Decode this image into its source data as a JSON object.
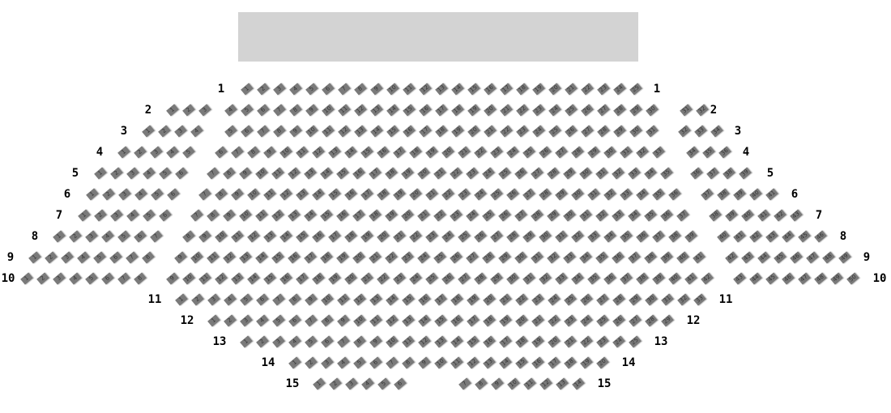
{
  "colors": {
    "stage": "#d3d3d3",
    "seat": "#7a7a7a",
    "label": "#000000"
  },
  "stage": {
    "label": ""
  },
  "rows": [
    {
      "label": "1",
      "sections": [
        25
      ]
    },
    {
      "label": "2",
      "sections": [
        3,
        27,
        2
      ]
    },
    {
      "label": "3",
      "sections": [
        4,
        27,
        3
      ]
    },
    {
      "label": "4",
      "sections": [
        5,
        28,
        3
      ]
    },
    {
      "label": "5",
      "sections": [
        6,
        29,
        4
      ]
    },
    {
      "label": "6",
      "sections": [
        6,
        30,
        5
      ]
    },
    {
      "label": "7",
      "sections": [
        6,
        31,
        6
      ]
    },
    {
      "label": "8",
      "sections": [
        7,
        32,
        7
      ]
    },
    {
      "label": "9",
      "sections": [
        8,
        33,
        8
      ]
    },
    {
      "label": "10",
      "sections": [
        8,
        34,
        8
      ]
    },
    {
      "label": "11",
      "sections": [
        33
      ]
    },
    {
      "label": "12",
      "sections": [
        29
      ]
    },
    {
      "label": "13",
      "sections": [
        25
      ]
    },
    {
      "label": "14",
      "sections": [
        20
      ]
    },
    {
      "label": "15",
      "sections": [
        6,
        8
      ]
    }
  ]
}
